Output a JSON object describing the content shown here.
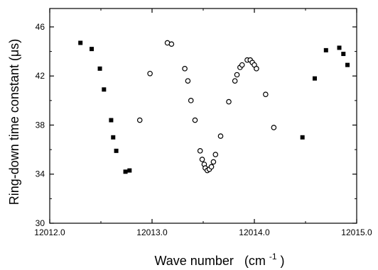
{
  "chart_data": {
    "type": "scatter",
    "title": "",
    "xlabel": "Wave number",
    "xlabel_unit_base": "(cm",
    "xlabel_unit_exp": "-1",
    "xlabel_unit_close": ")",
    "ylabel": "Ring-down time constant  (μs)",
    "xlim": [
      12012.0,
      12015.0
    ],
    "ylim": [
      30,
      47.5
    ],
    "xticks": [
      12012.0,
      12013.0,
      12014.0,
      12015.0
    ],
    "xtick_labels": [
      "12012.0",
      "12013.0",
      "12014.0",
      "12015.0"
    ],
    "yticks": [
      30,
      34,
      38,
      42,
      46
    ],
    "ytick_labels": [
      "30",
      "34",
      "38",
      "42",
      "46"
    ],
    "grid": false,
    "series": [
      {
        "marker": "filled-square",
        "color": "#000000",
        "points": [
          [
            12012.3,
            44.7
          ],
          [
            12012.41,
            44.2
          ],
          [
            12012.49,
            42.6
          ],
          [
            12012.53,
            40.9
          ],
          [
            12012.6,
            38.4
          ],
          [
            12012.62,
            37.0
          ],
          [
            12012.65,
            35.9
          ],
          [
            12012.74,
            34.2
          ],
          [
            12012.78,
            34.3
          ],
          [
            12014.47,
            37.0
          ],
          [
            12014.59,
            41.8
          ],
          [
            12014.7,
            44.1
          ],
          [
            12014.83,
            44.3
          ],
          [
            12014.87,
            43.8
          ],
          [
            12014.91,
            42.9
          ]
        ]
      },
      {
        "marker": "open-circle",
        "color": "#000000",
        "points": [
          [
            12012.88,
            38.4
          ],
          [
            12012.98,
            42.2
          ],
          [
            12013.15,
            44.7
          ],
          [
            12013.19,
            44.6
          ],
          [
            12013.32,
            42.6
          ],
          [
            12013.35,
            41.6
          ],
          [
            12013.38,
            40.0
          ],
          [
            12013.42,
            38.4
          ],
          [
            12013.47,
            35.9
          ],
          [
            12013.49,
            35.2
          ],
          [
            12013.51,
            34.8
          ],
          [
            12013.52,
            34.5
          ],
          [
            12013.54,
            34.3
          ],
          [
            12013.56,
            34.4
          ],
          [
            12013.58,
            34.6
          ],
          [
            12013.6,
            35.0
          ],
          [
            12013.62,
            35.6
          ],
          [
            12013.67,
            37.1
          ],
          [
            12013.75,
            39.9
          ],
          [
            12013.81,
            41.6
          ],
          [
            12013.83,
            42.1
          ],
          [
            12013.86,
            42.7
          ],
          [
            12013.88,
            42.9
          ],
          [
            12013.93,
            43.3
          ],
          [
            12013.96,
            43.3
          ],
          [
            12013.98,
            43.1
          ],
          [
            12014.0,
            42.9
          ],
          [
            12014.02,
            42.6
          ],
          [
            12014.11,
            40.5
          ],
          [
            12014.19,
            37.8
          ]
        ]
      }
    ]
  }
}
